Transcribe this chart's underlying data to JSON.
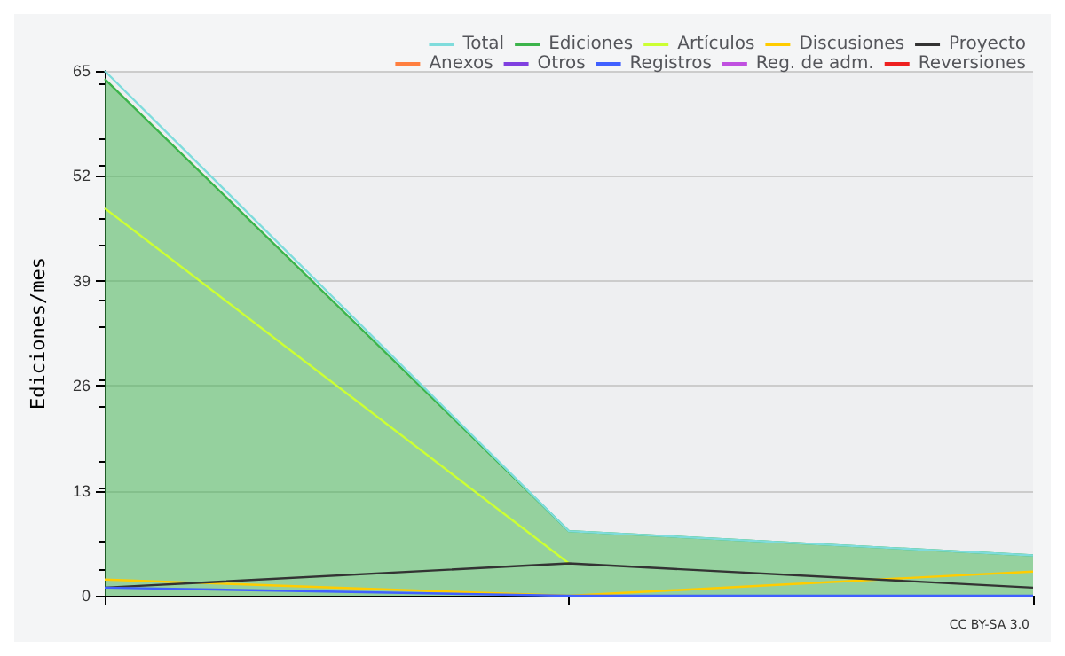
{
  "chart_data": {
    "type": "line",
    "ylabel": "Ediciones/mes",
    "annotations": [
      "CC BY-SA 3.0"
    ],
    "categories": [
      null,
      null,
      null
    ],
    "ylim": [
      0,
      65
    ],
    "yticks": [
      0,
      13,
      26,
      39,
      52,
      65
    ],
    "grid": "y",
    "legend": "top right",
    "marker": "none",
    "line_style": "solid",
    "series": [
      {
        "name": "Total",
        "color": "#7fdcdc",
        "values": [
          65,
          8,
          5
        ]
      },
      {
        "name": "Ediciones",
        "type": "area",
        "color": "#3cb44b",
        "values": [
          64,
          8,
          5
        ]
      },
      {
        "name": "Artículos",
        "color": "#ccff33",
        "values": [
          48,
          4,
          null
        ]
      },
      {
        "name": "Discusiones",
        "color": "#ffcc00",
        "values": [
          2,
          0,
          3
        ]
      },
      {
        "name": "Proyecto",
        "color": "#333333",
        "values": [
          1,
          4,
          1
        ]
      },
      {
        "name": "Anexos",
        "color": "#ff7f3f",
        "values": [
          null,
          null,
          null
        ]
      },
      {
        "name": "Otros",
        "color": "#8040e0",
        "values": [
          null,
          null,
          null
        ]
      },
      {
        "name": "Registros",
        "color": "#4060ff",
        "values": [
          1,
          0,
          0
        ]
      },
      {
        "name": "Reg. de adm.",
        "color": "#c050e0",
        "values": [
          null,
          null,
          null
        ]
      },
      {
        "name": "Reversiones",
        "color": "#ee2020",
        "values": [
          null,
          null,
          null
        ]
      }
    ]
  }
}
